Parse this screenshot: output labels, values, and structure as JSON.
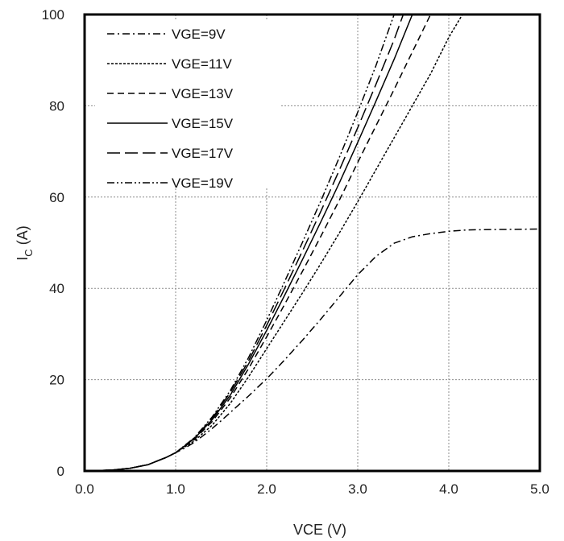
{
  "chart_data": {
    "type": "line",
    "xlabel": "VCE (V)",
    "ylabel_main": "I",
    "ylabel_sub": "C",
    "ylabel_unit": " (A)",
    "xlim": [
      0,
      5
    ],
    "ylim": [
      0,
      100
    ],
    "x_ticks": [
      "0.0",
      "1.0",
      "2.0",
      "3.0",
      "4.0",
      "5.0"
    ],
    "y_ticks": [
      "0",
      "20",
      "40",
      "60",
      "80",
      "100"
    ],
    "grid": true,
    "grid_style": "dotted",
    "legend_position": "top-left",
    "series": [
      {
        "name": "VGE=9V",
        "dash": "dashdot",
        "x": [
          0,
          0.3,
          0.5,
          0.7,
          0.8,
          0.9,
          1.0,
          1.1,
          1.2,
          1.3,
          1.4,
          1.5,
          1.6,
          1.7,
          1.8,
          1.9,
          2.0,
          2.2,
          2.4,
          2.6,
          2.8,
          3.0,
          3.2,
          3.4,
          3.6,
          3.8,
          4.0,
          4.2,
          4.5,
          5.0
        ],
        "y": [
          0,
          0.2,
          0.6,
          1.4,
          2.2,
          3.0,
          4.0,
          5.0,
          6.2,
          7.7,
          9.3,
          11.0,
          12.8,
          14.6,
          16.4,
          18.3,
          20.2,
          24.4,
          28.8,
          33.4,
          38.2,
          43.0,
          47.0,
          49.9,
          51.3,
          52.0,
          52.5,
          52.8,
          52.9,
          53.0
        ]
      },
      {
        "name": "VGE=11V",
        "dash": "dotted",
        "x": [
          0,
          0.3,
          0.5,
          0.7,
          0.8,
          0.9,
          1.0,
          1.2,
          1.4,
          1.6,
          1.8,
          2.0,
          2.2,
          2.4,
          2.6,
          2.8,
          3.0,
          3.2,
          3.4,
          3.6,
          3.8,
          4.0,
          4.15
        ],
        "y": [
          0,
          0.2,
          0.6,
          1.4,
          2.2,
          3.0,
          4.0,
          6.5,
          10.0,
          14.8,
          20.6,
          26.8,
          33.0,
          39.2,
          45.6,
          52.2,
          59.0,
          66.0,
          73.0,
          80.0,
          87.0,
          95.0,
          100.0
        ]
      },
      {
        "name": "VGE=13V",
        "dash": "dashed",
        "x": [
          0,
          0.3,
          0.5,
          0.7,
          0.8,
          0.9,
          1.0,
          1.2,
          1.4,
          1.6,
          1.8,
          2.0,
          2.2,
          2.4,
          2.6,
          2.8,
          3.0,
          3.2,
          3.4,
          3.6,
          3.8
        ],
        "y": [
          0,
          0.2,
          0.6,
          1.4,
          2.2,
          3.0,
          4.0,
          6.8,
          10.8,
          16.0,
          22.4,
          29.4,
          36.6,
          44.0,
          51.6,
          59.4,
          67.6,
          75.6,
          83.6,
          91.8,
          100.0
        ]
      },
      {
        "name": "VGE=15V",
        "dash": "solid",
        "x": [
          0,
          0.3,
          0.5,
          0.7,
          0.8,
          0.9,
          1.0,
          1.2,
          1.4,
          1.6,
          1.8,
          2.0,
          2.2,
          2.4,
          2.6,
          2.8,
          3.0,
          3.2,
          3.4,
          3.6
        ],
        "y": [
          0,
          0.2,
          0.6,
          1.4,
          2.2,
          3.0,
          4.0,
          7.0,
          11.2,
          16.6,
          23.4,
          30.8,
          38.6,
          46.6,
          54.8,
          63.2,
          72.0,
          81.0,
          90.2,
          100.0
        ]
      },
      {
        "name": "VGE=17V",
        "dash": "longdash",
        "x": [
          0,
          0.3,
          0.5,
          0.7,
          0.8,
          0.9,
          1.0,
          1.2,
          1.4,
          1.6,
          1.8,
          2.0,
          2.2,
          2.4,
          2.6,
          2.8,
          3.0,
          3.2,
          3.4,
          3.5
        ],
        "y": [
          0,
          0.2,
          0.6,
          1.4,
          2.2,
          3.0,
          4.0,
          7.1,
          11.5,
          17.2,
          24.1,
          31.9,
          40.1,
          48.5,
          57.1,
          66.0,
          75.2,
          84.7,
          94.5,
          100.0
        ]
      },
      {
        "name": "VGE=19V",
        "dash": "dashdotdot",
        "x": [
          0,
          0.3,
          0.5,
          0.7,
          0.8,
          0.9,
          1.0,
          1.2,
          1.4,
          1.6,
          1.8,
          2.0,
          2.2,
          2.4,
          2.6,
          2.8,
          3.0,
          3.2,
          3.4
        ],
        "y": [
          0,
          0.2,
          0.6,
          1.4,
          2.2,
          3.0,
          4.0,
          7.2,
          11.8,
          17.6,
          24.8,
          33.0,
          41.6,
          50.4,
          59.4,
          68.8,
          78.6,
          88.8,
          100.0
        ]
      }
    ]
  }
}
